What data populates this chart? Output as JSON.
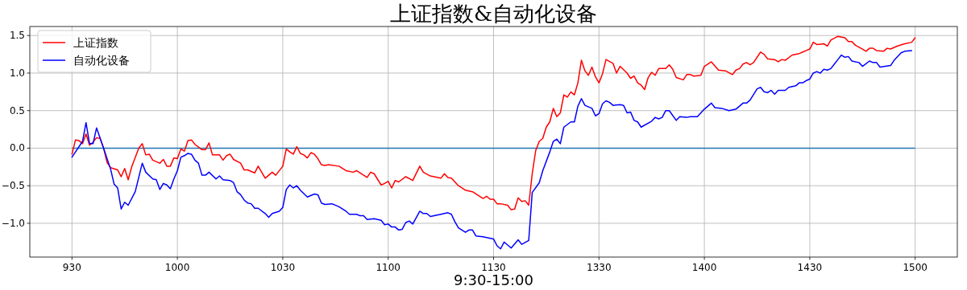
{
  "chart_data": {
    "type": "line",
    "title": "上证指数&自动化设备",
    "xlabel": "9:30-15:00",
    "categories": [
      "930",
      null,
      null,
      null,
      null,
      null,
      null,
      null,
      null,
      null,
      null,
      null,
      null,
      null,
      null,
      null,
      null,
      null,
      null,
      null,
      null,
      null,
      null,
      null,
      null,
      null,
      null,
      null,
      null,
      null,
      "1000",
      null,
      null,
      null,
      null,
      null,
      null,
      null,
      null,
      null,
      null,
      null,
      null,
      null,
      null,
      null,
      null,
      null,
      null,
      null,
      null,
      null,
      null,
      null,
      null,
      null,
      null,
      null,
      null,
      null,
      "1030",
      null,
      null,
      null,
      null,
      null,
      null,
      null,
      null,
      null,
      null,
      null,
      null,
      null,
      null,
      null,
      null,
      null,
      null,
      null,
      null,
      null,
      null,
      null,
      null,
      null,
      null,
      null,
      null,
      null,
      "1100",
      null,
      null,
      null,
      null,
      null,
      null,
      null,
      null,
      null,
      null,
      null,
      null,
      null,
      null,
      null,
      null,
      null,
      null,
      null,
      null,
      null,
      null,
      null,
      null,
      null,
      null,
      null,
      null,
      null,
      "1130",
      null,
      null,
      null,
      null,
      null,
      null,
      null,
      null,
      null,
      null,
      null,
      null,
      null,
      null,
      null,
      null,
      null,
      null,
      null,
      null,
      null,
      null,
      null,
      null,
      null,
      null,
      null,
      null,
      null,
      "1330",
      null,
      null,
      null,
      null,
      null,
      null,
      null,
      null,
      null,
      null,
      null,
      null,
      null,
      null,
      null,
      null,
      null,
      null,
      null,
      null,
      null,
      null,
      null,
      null,
      null,
      null,
      null,
      null,
      null,
      "1400",
      null,
      null,
      null,
      null,
      null,
      null,
      null,
      null,
      null,
      null,
      null,
      null,
      null,
      null,
      null,
      null,
      null,
      null,
      null,
      null,
      null,
      null,
      null,
      null,
      null,
      null,
      null,
      null,
      null,
      "1430",
      null,
      null,
      null,
      null,
      null,
      null,
      null,
      null,
      null,
      null,
      null,
      null,
      null,
      null,
      null,
      null,
      null,
      null,
      null,
      null,
      null,
      null,
      null,
      null,
      null,
      null,
      null,
      null,
      null,
      "1500"
    ],
    "ylim": [
      -1.45,
      1.62
    ],
    "yticks": [
      {
        "value": -1,
        "label": "−1.0"
      },
      {
        "value": -0.5,
        "label": "−0.5"
      },
      {
        "value": 0,
        "label": "0.0"
      },
      {
        "value": 0.5,
        "label": "0.5"
      },
      {
        "value": 1,
        "label": "1.0"
      },
      {
        "value": 1.5,
        "label": "1.5"
      }
    ],
    "grid": true,
    "legend": "top left",
    "line_style": "solid",
    "ref_lines": [
      {
        "axis": "y",
        "value": 0,
        "color": "#1f77b4"
      }
    ],
    "series": [
      {
        "name": "上证指数",
        "color": "#ff0000",
        "values": [
          -0.08,
          0.11,
          0.1,
          0.06,
          0.19,
          0.04,
          0.08,
          0.14,
          0.13,
          0.0,
          -0.19,
          -0.26,
          null,
          -0.29,
          -0.38,
          -0.27,
          -0.42,
          -0.25,
          null,
          0.0,
          0.06,
          -0.09,
          -0.08,
          -0.16,
          null,
          -0.2,
          -0.15,
          -0.24,
          -0.24,
          -0.13,
          -0.14,
          -0.01,
          -0.04,
          0.1,
          0.11,
          0.05,
          null,
          -0.02,
          -0.02,
          0.07,
          -0.09,
          null,
          -0.09,
          -0.16,
          -0.1,
          -0.08,
          -0.15,
          null,
          -0.2,
          -0.29,
          -0.29,
          null,
          -0.33,
          -0.24,
          null,
          -0.4,
          null,
          -0.32,
          -0.36,
          null,
          -0.24,
          -0.01,
          -0.05,
          -0.08,
          0.02,
          -0.07,
          -0.09,
          -0.13,
          -0.06,
          -0.08,
          -0.14,
          -0.22,
          -0.23,
          -0.22,
          null,
          null,
          -0.24,
          -0.27,
          -0.3,
          null,
          -0.32,
          -0.3,
          null,
          null,
          -0.39,
          -0.32,
          -0.34,
          null,
          -0.49,
          -0.47,
          -0.44,
          -0.53,
          -0.43,
          -0.45,
          null,
          -0.38,
          null,
          -0.43,
          null,
          -0.24,
          -0.32,
          null,
          -0.37,
          null,
          null,
          -0.4,
          -0.34,
          -0.39,
          -0.4,
          null,
          -0.5,
          -0.53,
          -0.56,
          null,
          -0.58,
          -0.61,
          null,
          -0.67,
          -0.64,
          -0.68,
          -0.68,
          -0.74,
          -0.74,
          null,
          -0.76,
          -0.82,
          -0.81,
          -0.66,
          -0.71,
          -0.7,
          -0.76,
          -0.34,
          -0.03,
          0.09,
          0.13,
          0.28,
          0.35,
          0.53,
          0.42,
          0.47,
          0.71,
          0.68,
          0.75,
          0.71,
          0.87,
          1.17,
          1.03,
          0.97,
          1.08,
          0.95,
          0.87,
          0.99,
          1.18,
          null,
          1.13,
          1.0,
          1.09,
          null,
          1.0,
          0.93,
          0.96,
          0.87,
          0.84,
          0.78,
          0.94,
          1.01,
          0.97,
          1.06,
          null,
          1.06,
          1.11,
          1.05,
          0.94,
          null,
          0.91,
          0.98,
          0.98,
          0.96,
          null,
          0.97,
          1.09,
          null,
          1.15,
          null,
          1.04,
          null,
          1.03,
          null,
          0.98,
          1.04,
          1.06,
          1.12,
          1.14,
          1.11,
          1.14,
          null,
          1.28,
          1.25,
          1.19,
          null,
          1.18,
          1.15,
          1.18,
          1.17,
          null,
          1.24,
          null,
          1.26,
          1.28,
          1.3,
          1.32,
          1.41,
          1.38,
          null,
          1.39,
          1.36,
          1.44,
          null,
          1.49,
          null,
          1.47,
          1.42,
          1.42,
          1.37,
          null,
          1.32,
          1.29,
          1.33,
          1.33,
          1.3,
          null,
          1.29,
          1.33,
          1.32,
          null,
          1.36,
          null,
          1.39,
          null,
          1.41,
          1.47
        ]
      },
      {
        "name": "自动化设备",
        "color": "#0000ff",
        "values": [
          -0.12,
          null,
          null,
          0.09,
          0.34,
          0.06,
          0.06,
          0.27,
          null,
          0.0,
          null,
          -0.28,
          -0.48,
          -0.53,
          -0.81,
          -0.72,
          -0.76,
          null,
          -0.58,
          null,
          -0.2,
          -0.32,
          null,
          -0.41,
          -0.42,
          -0.55,
          -0.47,
          -0.49,
          -0.54,
          -0.41,
          -0.3,
          -0.12,
          -0.1,
          -0.07,
          -0.08,
          -0.16,
          -0.2,
          -0.36,
          -0.36,
          -0.32,
          null,
          -0.41,
          -0.37,
          -0.42,
          null,
          -0.43,
          -0.46,
          -0.58,
          -0.62,
          -0.69,
          -0.73,
          -0.74,
          -0.8,
          -0.8,
          null,
          -0.87,
          -0.92,
          -0.87,
          null,
          -0.84,
          -0.79,
          -0.55,
          -0.49,
          -0.53,
          -0.5,
          -0.56,
          null,
          -0.65,
          null,
          -0.61,
          -0.62,
          -0.73,
          -0.75,
          null,
          -0.74,
          null,
          -0.78,
          null,
          -0.84,
          -0.88,
          null,
          -0.88,
          -0.9,
          -0.9,
          -0.95,
          null,
          -0.94,
          null,
          -0.96,
          -1.02,
          -1.01,
          -1.05,
          -1.05,
          -1.09,
          -1.08,
          -0.99,
          -0.97,
          -1.01,
          null,
          -0.84,
          -0.87,
          -0.87,
          -0.91,
          null,
          null,
          -0.88,
          null,
          -0.86,
          -0.88,
          -0.98,
          -1.06,
          null,
          -1.12,
          -1.09,
          -1.09,
          -1.17,
          null,
          -1.18,
          null,
          null,
          -1.21,
          -1.3,
          -1.34,
          -1.25,
          -1.29,
          -1.33,
          null,
          -1.22,
          -1.28,
          null,
          -1.23,
          -0.59,
          null,
          -0.46,
          -0.3,
          null,
          -0.05,
          0.09,
          0.12,
          0.06,
          0.28,
          null,
          0.35,
          0.35,
          0.56,
          0.66,
          0.57,
          null,
          0.53,
          0.43,
          0.46,
          0.59,
          0.63,
          0.61,
          0.57,
          null,
          0.58,
          0.57,
          0.47,
          0.48,
          0.37,
          0.35,
          0.28,
          null,
          null,
          0.36,
          0.41,
          0.39,
          0.41,
          0.5,
          0.5,
          null,
          0.37,
          0.42,
          null,
          0.41,
          0.42,
          null,
          0.42,
          null,
          0.52,
          null,
          0.6,
          0.54,
          null,
          0.53,
          null,
          0.5,
          null,
          0.52,
          null,
          0.6,
          0.6,
          0.64,
          null,
          0.79,
          0.81,
          0.75,
          0.74,
          0.77,
          0.72,
          0.77,
          null,
          0.77,
          0.81,
          null,
          0.83,
          0.87,
          0.87,
          0.9,
          0.92,
          1.0,
          1.02,
          1.0,
          1.05,
          1.04,
          1.06,
          1.12,
          1.18,
          1.24,
          1.21,
          1.22,
          1.16,
          null,
          1.14,
          1.09,
          null,
          1.16,
          1.14,
          1.14,
          1.08,
          null,
          null,
          1.1,
          1.17,
          null,
          1.27,
          1.29,
          null,
          1.3,
          null
        ]
      }
    ]
  }
}
